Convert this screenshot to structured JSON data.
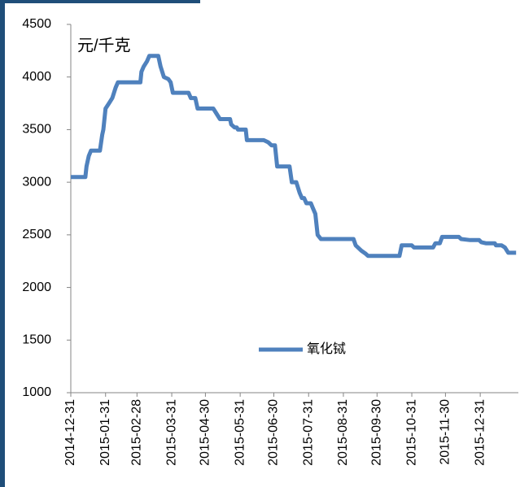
{
  "chart_data": {
    "type": "line",
    "y_label": "元/千克",
    "x": [
      "2014-12-31",
      "2015-01-13",
      "2015-01-14",
      "2015-01-16",
      "2015-01-18",
      "2015-01-26",
      "2015-01-28",
      "2015-01-29",
      "2015-01-31",
      "2015-02-03",
      "2015-02-06",
      "2015-02-09",
      "2015-02-11",
      "2015-03-03",
      "2015-03-04",
      "2015-03-06",
      "2015-03-09",
      "2015-03-11",
      "2015-03-19",
      "2015-03-21",
      "2015-03-24",
      "2015-03-28",
      "2015-03-30",
      "2015-04-01",
      "2015-04-15",
      "2015-04-17",
      "2015-04-21",
      "2015-04-23",
      "2015-05-07",
      "2015-05-10",
      "2015-05-13",
      "2015-05-22",
      "2015-05-23",
      "2015-05-26",
      "2015-05-28",
      "2015-05-29",
      "2015-06-05",
      "2015-06-06",
      "2015-06-21",
      "2015-06-25",
      "2015-06-28",
      "2015-07-01",
      "2015-07-03",
      "2015-07-14",
      "2015-07-16",
      "2015-07-20",
      "2015-07-23",
      "2015-07-25",
      "2015-07-27",
      "2015-07-29",
      "2015-08-02",
      "2015-08-04",
      "2015-08-06",
      "2015-08-08",
      "2015-08-11",
      "2015-09-09",
      "2015-09-11",
      "2015-09-13",
      "2015-09-16",
      "2015-09-20",
      "2015-09-22",
      "2015-10-20",
      "2015-10-22",
      "2015-10-31",
      "2015-11-02",
      "2015-11-19",
      "2015-11-21",
      "2015-11-25",
      "2015-11-27",
      "2015-12-12",
      "2015-12-14",
      "2015-12-22",
      "2015-12-30",
      "2016-01-01",
      "2016-01-05",
      "2016-01-13",
      "2016-01-14",
      "2016-01-19",
      "2016-01-22",
      "2016-01-25",
      "2016-02-01"
    ],
    "series": [
      {
        "name": "氧化铽",
        "color": "#4f81bd",
        "values": [
          3050,
          3050,
          3150,
          3250,
          3300,
          3300,
          3450,
          3500,
          3700,
          3750,
          3800,
          3900,
          3950,
          3950,
          4050,
          4100,
          4150,
          4200,
          4200,
          4100,
          4000,
          3980,
          3950,
          3850,
          3850,
          3800,
          3800,
          3700,
          3700,
          3650,
          3600,
          3600,
          3550,
          3520,
          3520,
          3500,
          3500,
          3400,
          3400,
          3380,
          3350,
          3350,
          3150,
          3150,
          3000,
          3000,
          2900,
          2850,
          2850,
          2800,
          2800,
          2750,
          2700,
          2500,
          2460,
          2460,
          2400,
          2380,
          2350,
          2320,
          2300,
          2300,
          2400,
          2400,
          2380,
          2380,
          2420,
          2420,
          2480,
          2480,
          2460,
          2450,
          2450,
          2430,
          2420,
          2420,
          2400,
          2400,
          2380,
          2330,
          2330
        ]
      }
    ],
    "xlim": [
      "2014-12-31",
      "2016-02-03"
    ],
    "xticks": [
      "2014-12-31",
      "2015-01-31",
      "2015-02-28",
      "2015-03-31",
      "2015-04-30",
      "2015-05-31",
      "2015-06-30",
      "2015-07-31",
      "2015-08-31",
      "2015-09-30",
      "2015-10-31",
      "2015-11-30",
      "2015-12-31"
    ],
    "ylim": [
      1000,
      4500
    ],
    "yticks": [
      1000,
      1500,
      2000,
      2500,
      3000,
      3500,
      4000,
      4500
    ],
    "grid": false,
    "legend": "bottom"
  }
}
